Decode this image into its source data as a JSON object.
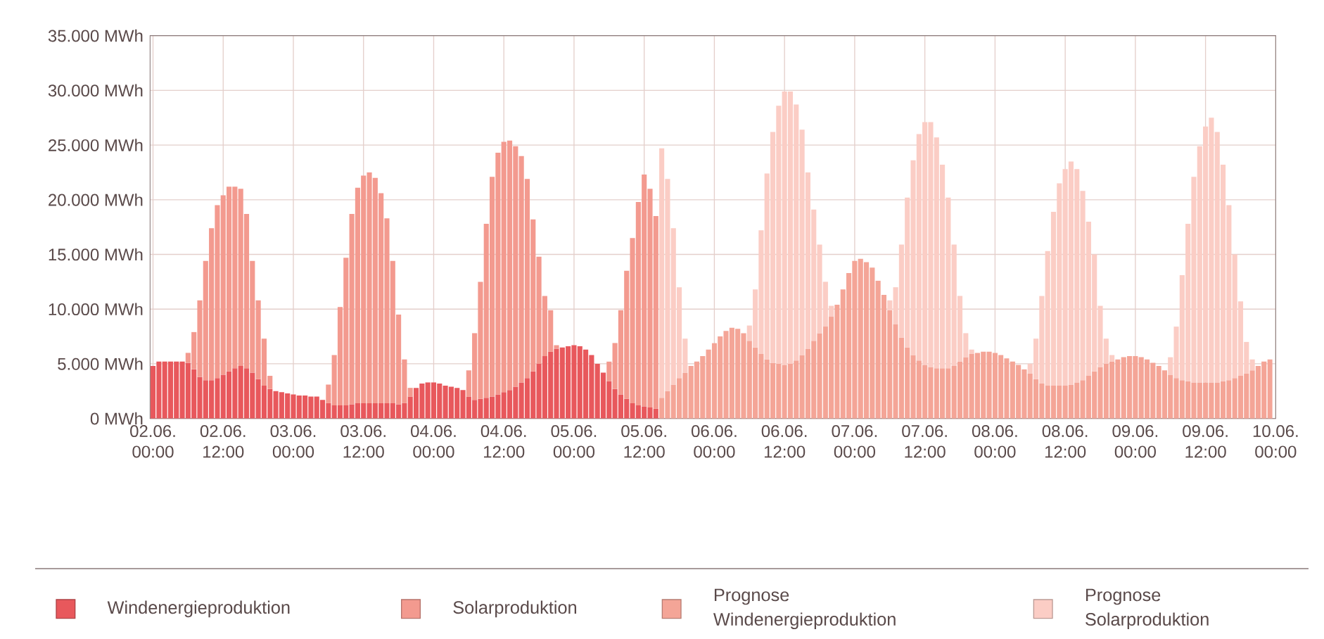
{
  "chart_data": {
    "type": "bar",
    "stacked": true,
    "grid": true,
    "legend": "bottom",
    "ylim": [
      0,
      35000
    ],
    "categories": [
      "02.06. 00:00",
      null,
      null,
      null,
      null,
      null,
      null,
      null,
      null,
      null,
      null,
      null,
      "02.06. 12:00",
      null,
      null,
      null,
      null,
      null,
      null,
      null,
      null,
      null,
      null,
      null,
      "03.06. 00:00",
      null,
      null,
      null,
      null,
      null,
      null,
      null,
      null,
      null,
      null,
      null,
      "03.06. 12:00",
      null,
      null,
      null,
      null,
      null,
      null,
      null,
      null,
      null,
      null,
      null,
      "04.06. 00:00",
      null,
      null,
      null,
      null,
      null,
      null,
      null,
      null,
      null,
      null,
      null,
      "04.06. 12:00",
      null,
      null,
      null,
      null,
      null,
      null,
      null,
      null,
      null,
      null,
      null,
      "05.06. 00:00",
      null,
      null,
      null,
      null,
      null,
      null,
      null,
      null,
      null,
      null,
      null,
      "05.06. 12:00",
      null,
      null,
      null,
      null,
      null,
      null,
      null,
      null,
      null,
      null,
      null,
      "06.06. 00:00",
      null,
      null,
      null,
      null,
      null,
      null,
      null,
      null,
      null,
      null,
      null,
      "06.06. 12:00",
      null,
      null,
      null,
      null,
      null,
      null,
      null,
      null,
      null,
      null,
      null,
      "07.06. 00:00",
      null,
      null,
      null,
      null,
      null,
      null,
      null,
      null,
      null,
      null,
      null,
      "07.06. 12:00",
      null,
      null,
      null,
      null,
      null,
      null,
      null,
      null,
      null,
      null,
      null,
      "08.06. 00:00",
      null,
      null,
      null,
      null,
      null,
      null,
      null,
      null,
      null,
      null,
      null,
      "08.06. 12:00",
      null,
      null,
      null,
      null,
      null,
      null,
      null,
      null,
      null,
      null,
      null,
      "09.06. 00:00",
      null,
      null,
      null,
      null,
      null,
      null,
      null,
      null,
      null,
      null,
      null,
      "09.06. 12:00",
      null,
      null,
      null,
      null,
      null,
      null,
      null,
      null,
      null,
      null,
      null,
      "10.06. 00:00"
    ],
    "yticks": [
      {
        "value": 0,
        "label": "0 MWh"
      },
      {
        "value": 5000,
        "label": "5.000 MWh"
      },
      {
        "value": 10000,
        "label": "10.000 MWh"
      },
      {
        "value": 15000,
        "label": "15.000 MWh"
      },
      {
        "value": 20000,
        "label": "20.000 MWh"
      },
      {
        "value": 25000,
        "label": "25.000 MWh"
      },
      {
        "value": 30000,
        "label": "30.000 MWh"
      },
      {
        "value": 35000,
        "label": "35.000 MWh"
      }
    ],
    "series": [
      {
        "name": "Windenergieproduktion",
        "color": "#e8585c",
        "values": [
          4800,
          5200,
          5200,
          5200,
          5200,
          5200,
          5100,
          4500,
          3800,
          3500,
          3500,
          3700,
          4000,
          4300,
          4600,
          4800,
          4600,
          4200,
          3600,
          3000,
          2700,
          2500,
          2400,
          2300,
          2200,
          2100,
          2100,
          2000,
          2000,
          1700,
          1400,
          1200,
          1200,
          1200,
          1300,
          1400,
          1400,
          1400,
          1400,
          1400,
          1400,
          1400,
          1300,
          1400,
          2000,
          2800,
          3200,
          3300,
          3300,
          3200,
          3000,
          2900,
          2800,
          2600,
          2000,
          1700,
          1800,
          1900,
          2000,
          2200,
          2400,
          2600,
          2900,
          3300,
          3700,
          4300,
          5000,
          5700,
          6100,
          6400,
          6500,
          6600,
          6700,
          6600,
          6300,
          5800,
          5000,
          4200,
          3400,
          2700,
          2200,
          1800,
          1400,
          1200,
          1100,
          1000,
          900,
          null,
          null,
          null,
          null,
          null,
          null,
          null,
          null,
          null,
          null,
          null,
          null,
          null,
          null,
          null,
          null,
          null,
          null,
          null,
          null,
          null,
          null,
          null,
          null,
          null,
          null,
          null,
          null,
          null,
          null,
          null,
          null,
          null,
          null,
          null,
          null,
          null,
          null,
          null,
          null,
          null,
          null,
          null,
          null,
          null,
          null,
          null,
          null,
          null,
          null,
          null,
          null,
          null,
          null,
          null,
          null,
          null,
          null,
          null,
          null,
          null,
          null,
          null,
          null,
          null,
          null,
          null,
          null,
          null,
          null,
          null,
          null,
          null,
          null,
          null,
          null,
          null,
          null,
          null,
          null,
          null,
          null,
          null,
          null,
          null,
          null,
          null,
          null,
          null,
          null,
          null,
          null,
          null,
          null,
          null,
          null,
          null,
          null,
          null,
          null,
          null,
          null,
          null,
          null,
          null,
          null
        ]
      },
      {
        "name": "Solarproduktion",
        "color": "#f39a8f",
        "values": [
          null,
          null,
          null,
          null,
          null,
          null,
          900,
          3400,
          7000,
          10900,
          13900,
          15800,
          16400,
          16900,
          16600,
          16200,
          14100,
          10200,
          7200,
          4300,
          1200,
          null,
          null,
          null,
          null,
          null,
          null,
          null,
          null,
          null,
          1700,
          4600,
          9000,
          13500,
          17400,
          19700,
          20800,
          21100,
          20600,
          19200,
          16900,
          13000,
          8200,
          4000,
          800,
          null,
          null,
          null,
          null,
          null,
          null,
          null,
          null,
          null,
          2400,
          6100,
          10700,
          15900,
          20100,
          22100,
          22900,
          22800,
          22000,
          20700,
          18200,
          13900,
          9800,
          5500,
          3800,
          300,
          null,
          null,
          null,
          null,
          null,
          null,
          null,
          null,
          1800,
          4200,
          7700,
          11700,
          15100,
          18600,
          21200,
          20000,
          17600,
          null,
          null,
          null,
          null,
          null,
          null,
          null,
          null,
          null,
          null,
          null,
          null,
          null,
          null,
          null,
          null,
          null,
          null,
          null,
          null,
          null,
          null,
          null,
          null,
          null,
          null,
          null,
          null,
          null,
          null,
          null,
          null,
          null,
          null,
          null,
          null,
          null,
          null,
          null,
          null,
          null,
          null,
          null,
          null,
          null,
          null,
          null,
          null,
          null,
          null,
          null,
          null,
          null,
          null,
          null,
          null,
          null,
          null,
          null,
          null,
          null,
          null,
          null,
          null,
          null,
          null,
          null,
          null,
          null,
          null,
          null,
          null,
          null,
          null,
          null,
          null,
          null,
          null,
          null,
          null,
          null,
          null,
          null,
          null,
          null,
          null,
          null,
          null,
          null,
          null,
          null,
          null,
          null,
          null,
          null,
          null,
          null,
          null,
          null,
          null,
          null,
          null,
          null,
          null,
          null,
          null
        ]
      },
      {
        "name": "Prognose Windenergieproduktion",
        "color": "#f4a597",
        "values": [
          null,
          null,
          null,
          null,
          null,
          null,
          null,
          null,
          null,
          null,
          null,
          null,
          null,
          null,
          null,
          null,
          null,
          null,
          null,
          null,
          null,
          null,
          null,
          null,
          null,
          null,
          null,
          null,
          null,
          null,
          null,
          null,
          null,
          null,
          null,
          null,
          null,
          null,
          null,
          null,
          null,
          null,
          null,
          null,
          null,
          null,
          null,
          null,
          null,
          null,
          null,
          null,
          null,
          null,
          null,
          null,
          null,
          null,
          null,
          null,
          null,
          null,
          null,
          null,
          null,
          null,
          null,
          null,
          null,
          null,
          null,
          null,
          null,
          null,
          null,
          null,
          null,
          null,
          null,
          null,
          null,
          null,
          null,
          null,
          null,
          null,
          null,
          1900,
          2500,
          3100,
          3700,
          4200,
          4800,
          5200,
          5700,
          6300,
          6900,
          7500,
          8000,
          8300,
          8200,
          7800,
          7100,
          6500,
          5900,
          5400,
          5100,
          5000,
          4900,
          5000,
          5300,
          5800,
          6400,
          7100,
          7800,
          8400,
          9300,
          10400,
          11800,
          13300,
          14400,
          14600,
          14300,
          13800,
          12600,
          11300,
          9900,
          8600,
          7400,
          6500,
          5800,
          5300,
          4900,
          4700,
          4600,
          4600,
          4600,
          4800,
          5200,
          5600,
          5900,
          6000,
          6100,
          6100,
          6000,
          5800,
          5500,
          5200,
          4900,
          4500,
          4100,
          3600,
          3200,
          3000,
          3000,
          3000,
          3000,
          3100,
          3300,
          3500,
          3900,
          4300,
          4700,
          5000,
          5200,
          5400,
          5600,
          5700,
          5700,
          5600,
          5400,
          5100,
          4800,
          4400,
          4000,
          3700,
          3500,
          3400,
          3300,
          3300,
          3300,
          3300,
          3300,
          3400,
          3500,
          3700,
          3900,
          4100,
          4400,
          4800,
          5200,
          5400,
          null
        ]
      },
      {
        "name": "Prognose Solarproduktion",
        "color": "#fbcdc5",
        "values": [
          null,
          null,
          null,
          null,
          null,
          null,
          null,
          null,
          null,
          null,
          null,
          null,
          null,
          null,
          null,
          null,
          null,
          null,
          null,
          null,
          null,
          null,
          null,
          null,
          null,
          null,
          null,
          null,
          null,
          null,
          null,
          null,
          null,
          null,
          null,
          null,
          null,
          null,
          null,
          null,
          null,
          null,
          null,
          null,
          null,
          null,
          null,
          null,
          null,
          null,
          null,
          null,
          null,
          null,
          null,
          null,
          null,
          null,
          null,
          null,
          null,
          null,
          null,
          null,
          null,
          null,
          null,
          null,
          null,
          null,
          null,
          null,
          null,
          null,
          null,
          null,
          null,
          null,
          null,
          null,
          null,
          null,
          null,
          null,
          null,
          null,
          null,
          22800,
          19400,
          14300,
          8300,
          3100,
          null,
          null,
          null,
          null,
          null,
          null,
          null,
          null,
          null,
          null,
          1400,
          5300,
          11300,
          17000,
          21100,
          23600,
          25000,
          24900,
          23400,
          20600,
          16100,
          12000,
          8100,
          4100,
          1000,
          null,
          null,
          null,
          null,
          null,
          null,
          null,
          null,
          null,
          900,
          3400,
          8500,
          13700,
          17800,
          20700,
          22200,
          22400,
          21100,
          18600,
          15600,
          11100,
          6000,
          2200,
          400,
          null,
          null,
          null,
          null,
          null,
          null,
          null,
          null,
          null,
          900,
          3700,
          8000,
          12300,
          15900,
          18500,
          19800,
          20400,
          19500,
          17300,
          14100,
          10700,
          5600,
          2300,
          600,
          null,
          null,
          null,
          null,
          null,
          null,
          null,
          null,
          null,
          1600,
          4700,
          9600,
          14400,
          18800,
          21600,
          23400,
          24200,
          22900,
          19800,
          16000,
          11300,
          6800,
          2900,
          1000,
          null,
          null,
          null,
          null
        ]
      }
    ]
  }
}
